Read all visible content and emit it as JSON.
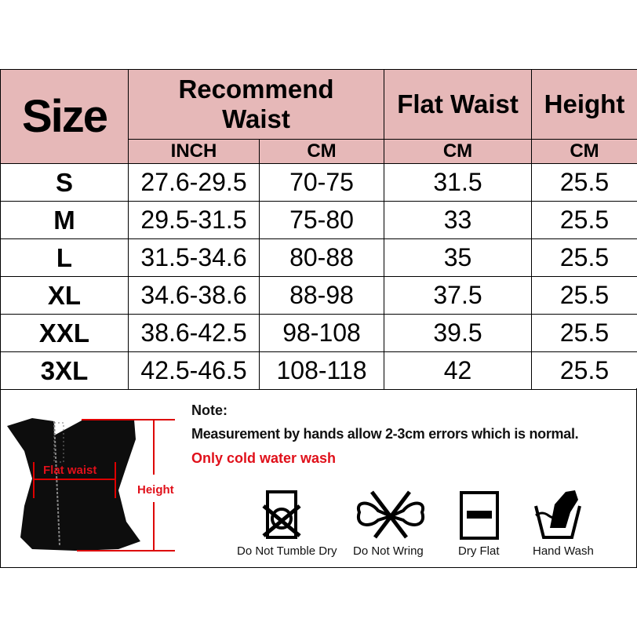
{
  "header": {
    "size": "Size",
    "recommend_waist": "Recommend Waist",
    "flat_waist": "Flat Waist",
    "height": "Height",
    "sub": {
      "inch": "INCH",
      "cm1": "CM",
      "cm2": "CM",
      "cm3": "CM"
    }
  },
  "rows": [
    {
      "size": "S",
      "inch": "27.6-29.5",
      "cm": "70-75",
      "flat": "31.5",
      "height": "25.5"
    },
    {
      "size": "M",
      "inch": "29.5-31.5",
      "cm": "75-80",
      "flat": "33",
      "height": "25.5"
    },
    {
      "size": "L",
      "inch": "31.5-34.6",
      "cm": "80-88",
      "flat": "35",
      "height": "25.5"
    },
    {
      "size": "XL",
      "inch": "34.6-38.6",
      "cm": "88-98",
      "flat": "37.5",
      "height": "25.5"
    },
    {
      "size": "XXL",
      "inch": "38.6-42.5",
      "cm": "98-108",
      "flat": "39.5",
      "height": "25.5"
    },
    {
      "size": "3XL",
      "inch": "42.5-46.5",
      "cm": "108-118",
      "flat": "42",
      "height": "25.5"
    }
  ],
  "notes": {
    "title": "Note:",
    "measurement": "Measurement by hands allow 2-3cm errors which is normal.",
    "wash": "Only cold water wash"
  },
  "diagram": {
    "flat_waist": "Flat waist",
    "height": "Height"
  },
  "care": [
    {
      "icon": "no-tumble-dry-icon",
      "label": "Do Not Tumble Dry"
    },
    {
      "icon": "no-wring-icon",
      "label": "Do Not Wring"
    },
    {
      "icon": "dry-flat-icon",
      "label": "Dry Flat"
    },
    {
      "icon": "hand-wash-icon",
      "label": "Hand Wash"
    }
  ],
  "colors": {
    "header_bg": "#e6b8b8",
    "accent_red": "#e0101a"
  }
}
